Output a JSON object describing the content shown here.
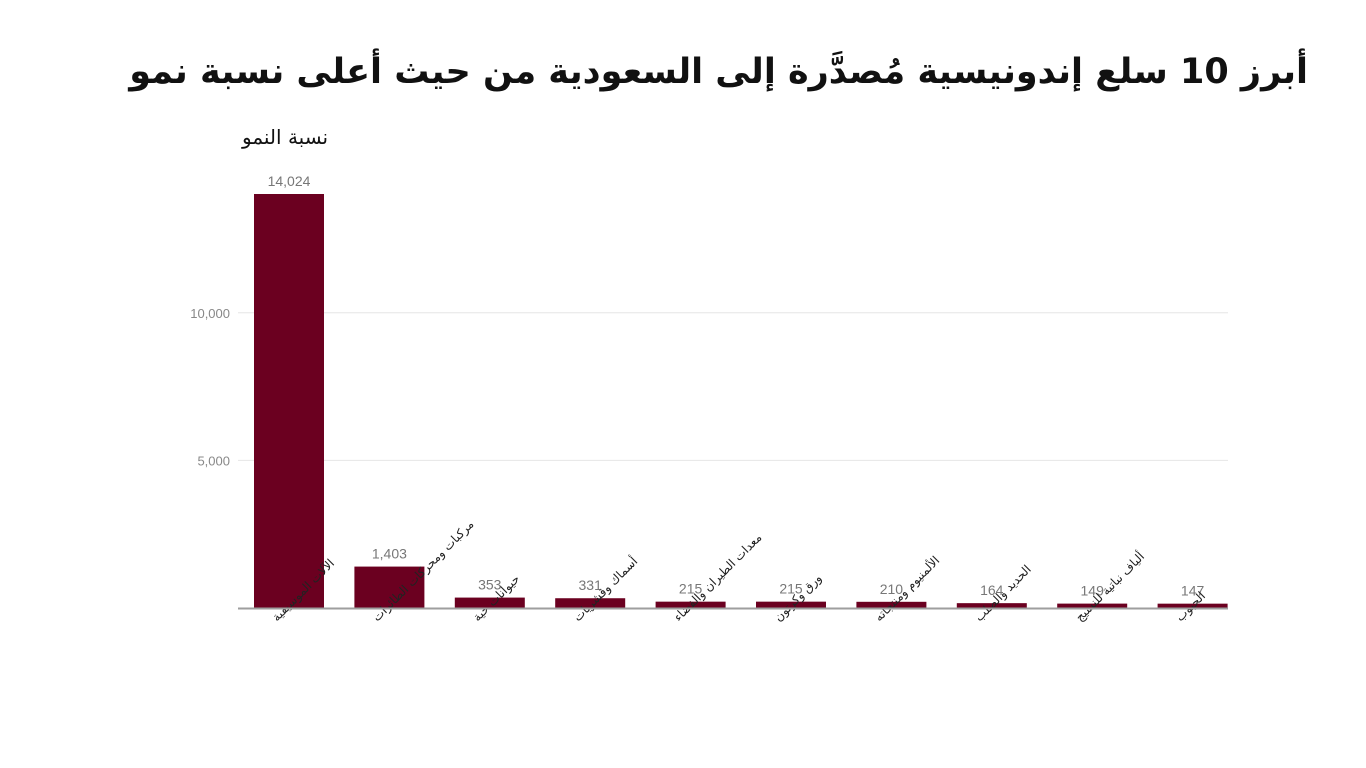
{
  "title": "أبرز 10 سلع إندونيسية مُصدَّرة إلى السعودية من حيث أعلى نسبة نمو",
  "colors": {
    "bar": "#6b0020",
    "grid": "#e6e6e6",
    "axis": "#9e9e9e"
  },
  "chart_data": {
    "type": "bar",
    "title": "أبرز 10 سلع إندونيسية مُصدَّرة إلى السعودية من حيث أعلى نسبة نمو",
    "ylabel": "نسبة النمو",
    "xlabel": "",
    "ylim": [
      0,
      14024
    ],
    "yticks": [
      5000,
      10000
    ],
    "ytick_labels": [
      "5,000",
      "10,000"
    ],
    "grid": true,
    "categories": [
      "الآلات الموسيقية",
      "مركبات ومحركات الطائرات",
      "حيوانات حية",
      "أسماك وقشريات",
      "معدات الطيران والفضاء",
      "ورق وكرتون",
      "الألمنيوم ومنتجاته",
      "الحديد والصلب",
      "ألياف نباتية للنسيج",
      "الحبوب"
    ],
    "values": [
      14024,
      1403,
      353,
      331,
      215,
      215,
      210,
      164,
      149,
      147
    ],
    "value_labels": [
      "14,024",
      "1,403",
      "353",
      "331",
      "215",
      "215",
      "210",
      "164",
      "149",
      "147"
    ]
  }
}
